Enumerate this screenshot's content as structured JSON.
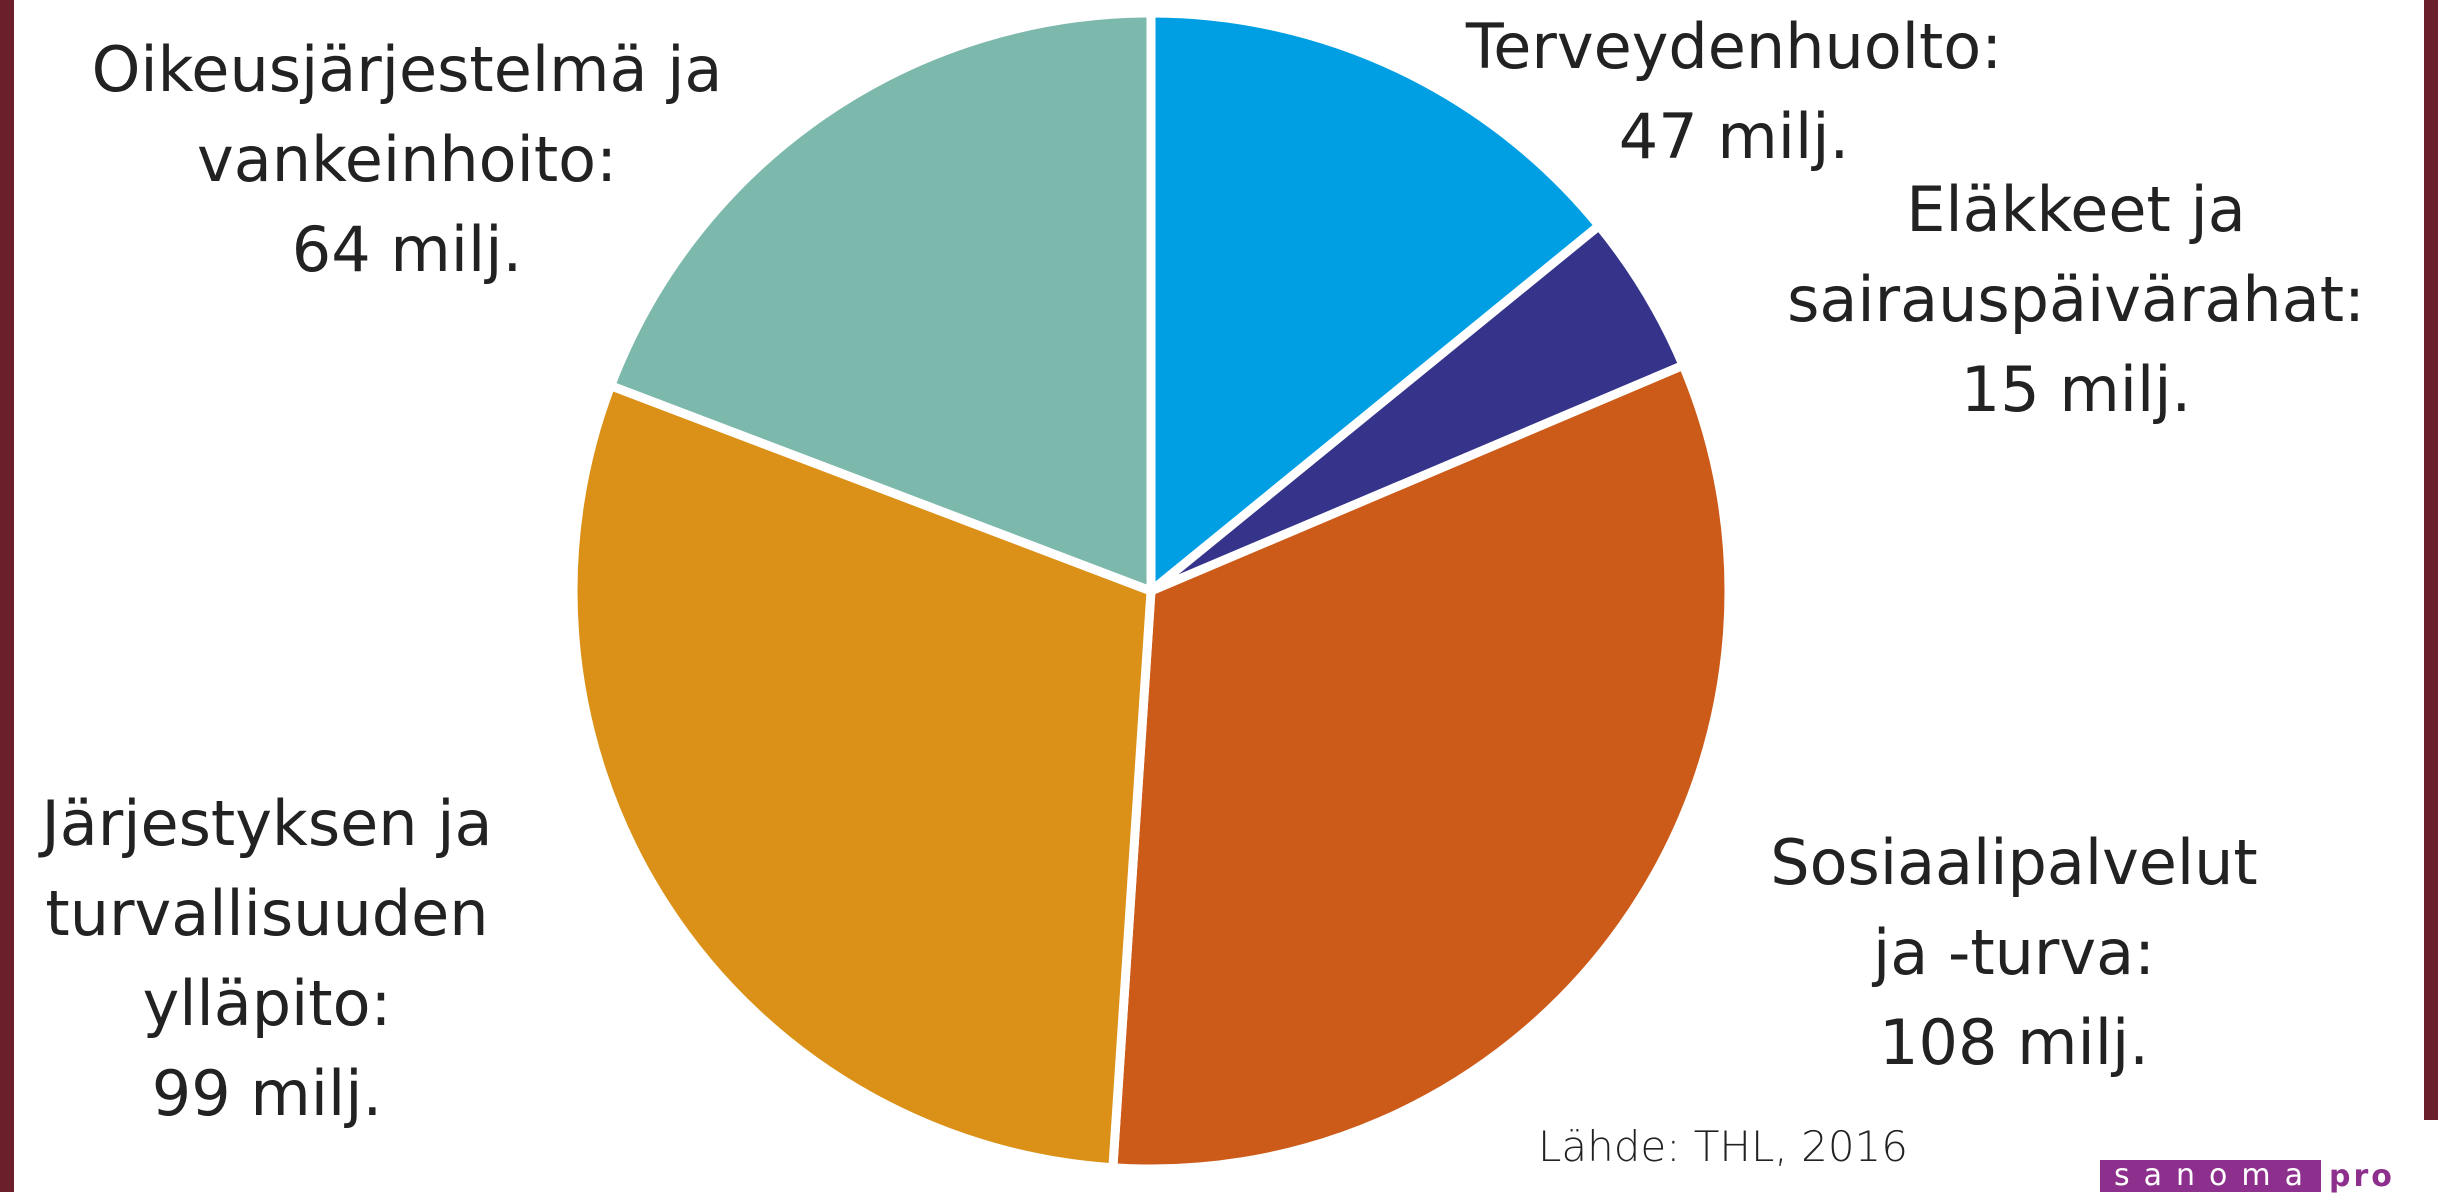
{
  "chart_data": {
    "type": "pie",
    "categories": [
      "Terveydenhuolto:",
      "Eläkkeet ja\nsairauspäivärahat:",
      "Sosiaalipalvelut\nja -turva:",
      "Järjestyksen ja\nturvallisuuden\nylläpito:",
      "Oikeusjärjestelmä ja\nvankeinhoito:"
    ],
    "values": [
      47,
      15,
      108,
      99,
      64
    ],
    "value_labels": [
      "47 milj.",
      "15 milj.",
      "108 milj.",
      "99 milj.",
      "64 milj."
    ],
    "colors": [
      "#009fe3",
      "#35348a",
      "#cc5a18",
      "#db9118",
      "#7db8ac"
    ],
    "source": "Lähde: THL, 2016"
  },
  "logo": {
    "name": "sanoma",
    "suffix": "pro"
  }
}
